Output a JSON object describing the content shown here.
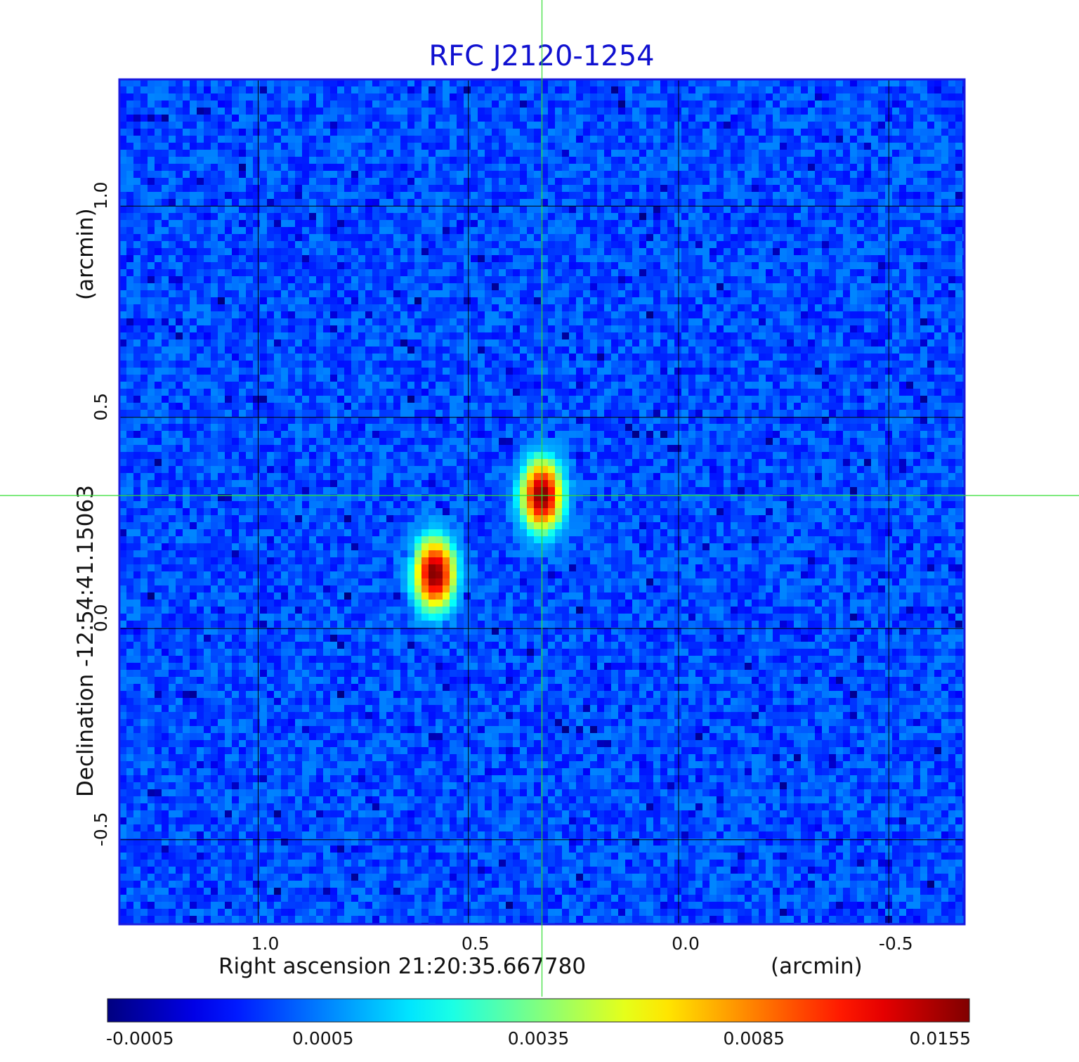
{
  "chart_data": {
    "type": "heatmap",
    "title": "RFC J2120-1254",
    "xlabel": "Right ascension  21:20:35.667780",
    "xunit": "(arcmin)",
    "ylabel": "Declination  -12:54:41.15063",
    "yunit": "(arcmin)",
    "x_reversed": true,
    "xlim": [
      1.33,
      -0.68
    ],
    "ylim": [
      -0.7,
      1.3
    ],
    "xticks": [
      1.0,
      0.5,
      0.0,
      -0.5
    ],
    "xtick_labels": [
      "1.0",
      "0.5",
      "0.0",
      "-0.5"
    ],
    "yticks": [
      1.0,
      0.5,
      0.0,
      -0.5
    ],
    "ytick_labels": [
      "1.0",
      "0.5",
      "0.0",
      "-0.5"
    ],
    "grid": true,
    "crosshair": {
      "x": 0.325,
      "y": 0.315
    },
    "sources": [
      {
        "x": 0.325,
        "y": 0.315,
        "peak": 0.0155
      },
      {
        "x": 0.58,
        "y": 0.13,
        "peak": 0.0155
      }
    ],
    "noise_level": 0.0005,
    "colorbar": {
      "colormap": "jet",
      "ticks": [
        -0.0005,
        0.0005,
        0.0035,
        0.0085,
        0.0155
      ],
      "tick_labels": [
        "-0.0005",
        "0.0005",
        "0.0035",
        "0.0085",
        "0.0155"
      ],
      "orientation": "horizontal",
      "placement": "bottom"
    },
    "colors": {
      "title": "#1010d0",
      "frame": "#1a1ae0",
      "crosshair": "#33dd33",
      "grid": "#000000"
    }
  }
}
